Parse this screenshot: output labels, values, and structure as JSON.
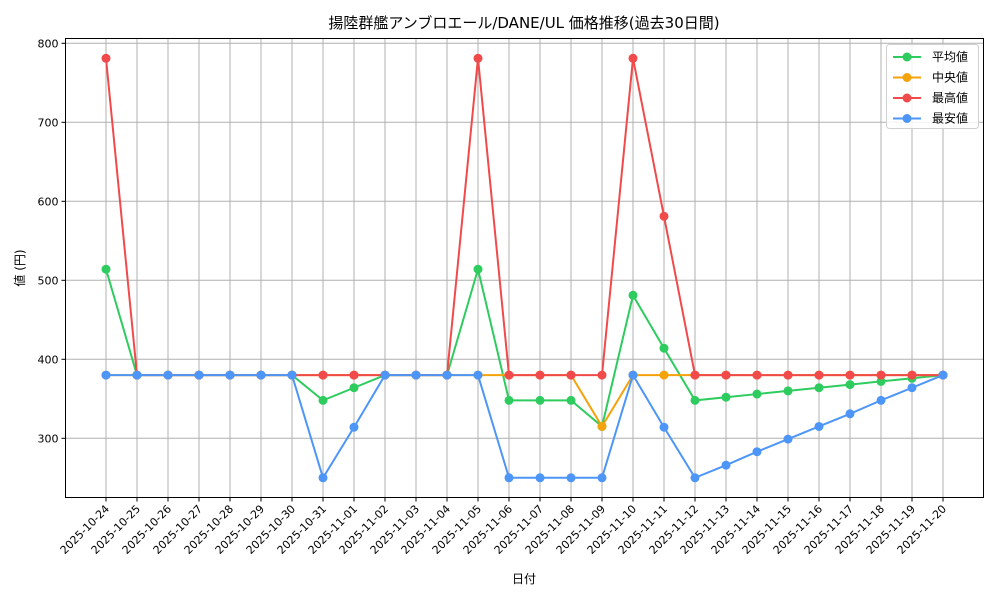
{
  "chart_data": {
    "type": "line",
    "title": "揚陸群艦アンブロエール/DANE/UL 価格推移(過去30日間)",
    "xlabel": "日付",
    "ylabel": "値 (円)",
    "ylim": [
      222,
      805
    ],
    "yticks": [
      300,
      400,
      500,
      600,
      700,
      800
    ],
    "grid": true,
    "legend_position": "upper right",
    "categories": [
      "2025-10-24",
      "2025-10-25",
      "2025-10-26",
      "2025-10-27",
      "2025-10-28",
      "2025-10-29",
      "2025-10-30",
      "2025-10-31",
      "2025-11-01",
      "2025-11-02",
      "2025-11-03",
      "2025-11-04",
      "2025-11-05",
      "2025-11-06",
      "2025-11-07",
      "2025-11-08",
      "2025-11-09",
      "2025-11-10",
      "2025-11-11",
      "2025-11-12",
      "2025-11-13",
      "2025-11-14",
      "2025-11-15",
      "2025-11-16",
      "2025-11-17",
      "2025-11-18",
      "2025-11-19",
      "2025-11-20"
    ],
    "series": [
      {
        "name": "平均値",
        "color": "#2ecc5f",
        "values": [
          514,
          380,
          380,
          380,
          380,
          380,
          380,
          348,
          364,
          380,
          380,
          380,
          514,
          348,
          348,
          348,
          315,
          481,
          414,
          348,
          352,
          356,
          360,
          364,
          368,
          372,
          376,
          380
        ]
      },
      {
        "name": "中央値",
        "color": "#f5a30a",
        "values": [
          380,
          380,
          380,
          380,
          380,
          380,
          380,
          380,
          380,
          380,
          380,
          380,
          380,
          380,
          380,
          380,
          315,
          380,
          380,
          380,
          380,
          380,
          380,
          380,
          380,
          380,
          380,
          380
        ]
      },
      {
        "name": "最高値",
        "color": "#f04a4a",
        "values": [
          781,
          380,
          380,
          380,
          380,
          380,
          380,
          380,
          380,
          380,
          380,
          380,
          781,
          380,
          380,
          380,
          380,
          781,
          581,
          380,
          380,
          380,
          380,
          380,
          380,
          380,
          380,
          380
        ]
      },
      {
        "name": "最安値",
        "color": "#4d96f7",
        "values": [
          380,
          380,
          380,
          380,
          380,
          380,
          380,
          250,
          314,
          380,
          380,
          380,
          380,
          250,
          250,
          250,
          250,
          380,
          314,
          250,
          266,
          283,
          299,
          315,
          331,
          348,
          364,
          380
        ]
      }
    ]
  }
}
